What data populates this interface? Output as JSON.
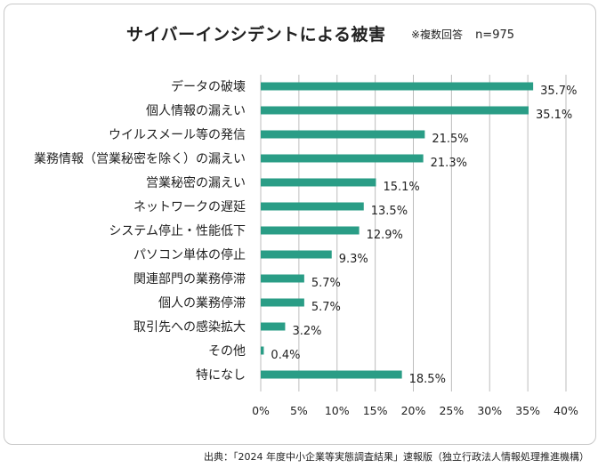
{
  "header": {
    "title": "サイバーインシデントによる被害",
    "note": "※複数回答",
    "sample": "n=975"
  },
  "source": "出典：「2024 年度中小企業等実態調査結果」速報版（独立行政法人情報処理推進機構）",
  "colors": {
    "bar": "#2a9d86",
    "grid": "#bdbdbd",
    "frame": "#c8c8c8"
  },
  "chart_data": {
    "type": "bar",
    "orientation": "horizontal",
    "categories": [
      "データの破壊",
      "個人情報の漏えい",
      "ウイルスメール等の発信",
      "業務情報（営業秘密を除く）の漏えい",
      "営業秘密の漏えい",
      "ネットワークの遅延",
      "システム停止・性能低下",
      "パソコン単体の停止",
      "関連部門の業務停滞",
      "個人の業務停滞",
      "取引先への感染拡大",
      "その他",
      "特になし"
    ],
    "values": [
      35.7,
      35.1,
      21.5,
      21.3,
      15.1,
      13.5,
      12.9,
      9.3,
      5.7,
      5.7,
      3.2,
      0.4,
      18.5
    ],
    "value_labels": [
      "35.7%",
      "35.1%",
      "21.5%",
      "21.3%",
      "15.1%",
      "13.5%",
      "12.9%",
      "9.3%",
      "5.7%",
      "5.7%",
      "3.2%",
      "0.4%",
      "18.5%"
    ],
    "xlim": [
      0,
      40
    ],
    "ticks": [
      0,
      5,
      10,
      15,
      20,
      25,
      30,
      35,
      40
    ],
    "tick_labels": [
      "0%",
      "5%",
      "10%",
      "15%",
      "20%",
      "25%",
      "30%",
      "35%",
      "40%"
    ],
    "grid": true
  }
}
